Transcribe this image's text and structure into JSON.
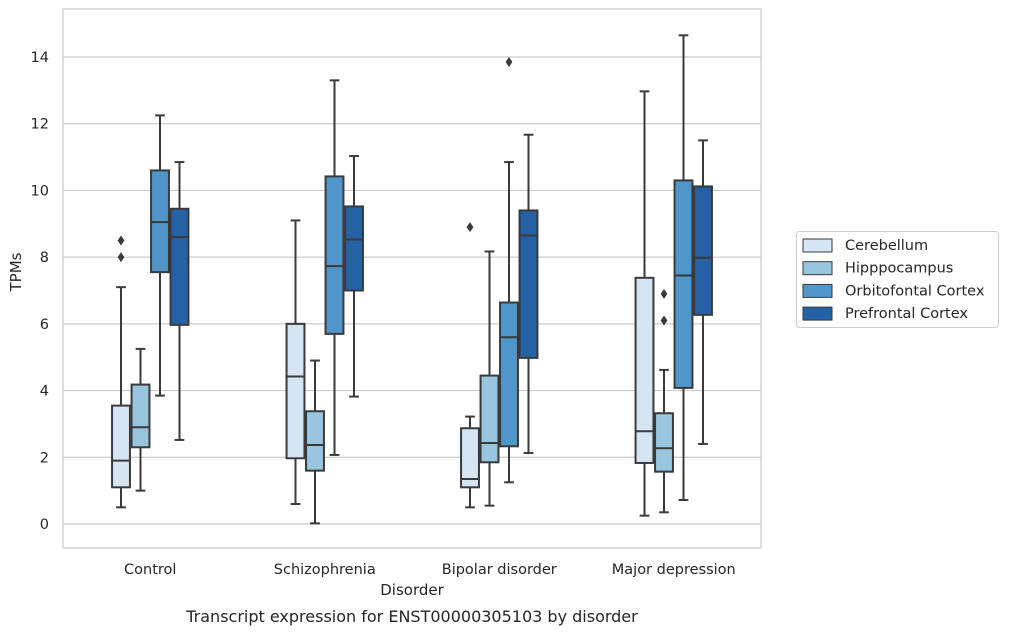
{
  "caption": "Transcript expression for ENST00000305103 by disorder",
  "chart_data": {
    "type": "box",
    "xlabel": "Disorder",
    "ylabel": "TPMs",
    "ylim": [
      -0.7,
      15.4
    ],
    "yticks": [
      0,
      2,
      4,
      6,
      8,
      10,
      12,
      14
    ],
    "grid": true,
    "legend_position": "right",
    "categories": [
      "Control",
      "Schizophrenia",
      "Bipolar disorder",
      "Major depression"
    ],
    "series": [
      {
        "name": "Cerebellum",
        "color": "#d6e5f4",
        "boxes": [
          {
            "whislo": 0.5,
            "q1": 1.1,
            "med": 1.9,
            "q3": 3.55,
            "whishi": 7.1,
            "fliers": [
              8.0,
              8.5
            ]
          },
          {
            "whislo": 0.6,
            "q1": 1.97,
            "med": 4.42,
            "q3": 6.0,
            "whishi": 9.1,
            "fliers": []
          },
          {
            "whislo": 0.5,
            "q1": 1.1,
            "med": 1.35,
            "q3": 2.87,
            "whishi": 3.22,
            "fliers": [
              8.9
            ]
          },
          {
            "whislo": 0.25,
            "q1": 1.83,
            "med": 2.78,
            "q3": 7.38,
            "whishi": 12.97,
            "fliers": []
          }
        ]
      },
      {
        "name": "Hipppocampus",
        "color": "#9ac5df",
        "boxes": [
          {
            "whislo": 1.0,
            "q1": 2.3,
            "med": 2.9,
            "q3": 4.18,
            "whishi": 5.25,
            "fliers": []
          },
          {
            "whislo": 0.02,
            "q1": 1.6,
            "med": 2.37,
            "q3": 3.38,
            "whishi": 4.9,
            "fliers": []
          },
          {
            "whislo": 0.55,
            "q1": 1.85,
            "med": 2.43,
            "q3": 4.45,
            "whishi": 8.17,
            "fliers": []
          },
          {
            "whislo": 0.35,
            "q1": 1.57,
            "med": 2.27,
            "q3": 3.32,
            "whishi": 4.62,
            "fliers": [
              6.1,
              6.9
            ]
          }
        ]
      },
      {
        "name": "Orbitofontal Cortex",
        "color": "#5096c9",
        "boxes": [
          {
            "whislo": 3.85,
            "q1": 7.55,
            "med": 9.05,
            "q3": 10.6,
            "whishi": 12.25,
            "fliers": []
          },
          {
            "whislo": 2.07,
            "q1": 5.7,
            "med": 7.73,
            "q3": 10.42,
            "whishi": 13.3,
            "fliers": []
          },
          {
            "whislo": 1.25,
            "q1": 2.33,
            "med": 5.6,
            "q3": 6.64,
            "whishi": 10.85,
            "fliers": [
              13.85
            ]
          },
          {
            "whislo": 0.72,
            "q1": 4.08,
            "med": 7.45,
            "q3": 10.3,
            "whishi": 14.65,
            "fliers": []
          }
        ]
      },
      {
        "name": "Prefrontal Cortex",
        "color": "#2461a5",
        "boxes": [
          {
            "whislo": 2.52,
            "q1": 5.97,
            "med": 8.6,
            "q3": 9.45,
            "whishi": 10.85,
            "fliers": []
          },
          {
            "whislo": 3.82,
            "q1": 7.0,
            "med": 8.53,
            "q3": 9.52,
            "whishi": 11.03,
            "fliers": []
          },
          {
            "whislo": 2.13,
            "q1": 4.98,
            "med": 8.65,
            "q3": 9.4,
            "whishi": 11.67,
            "fliers": []
          },
          {
            "whislo": 2.4,
            "q1": 6.27,
            "med": 7.98,
            "q3": 10.12,
            "whishi": 11.5,
            "fliers": []
          }
        ]
      }
    ]
  }
}
